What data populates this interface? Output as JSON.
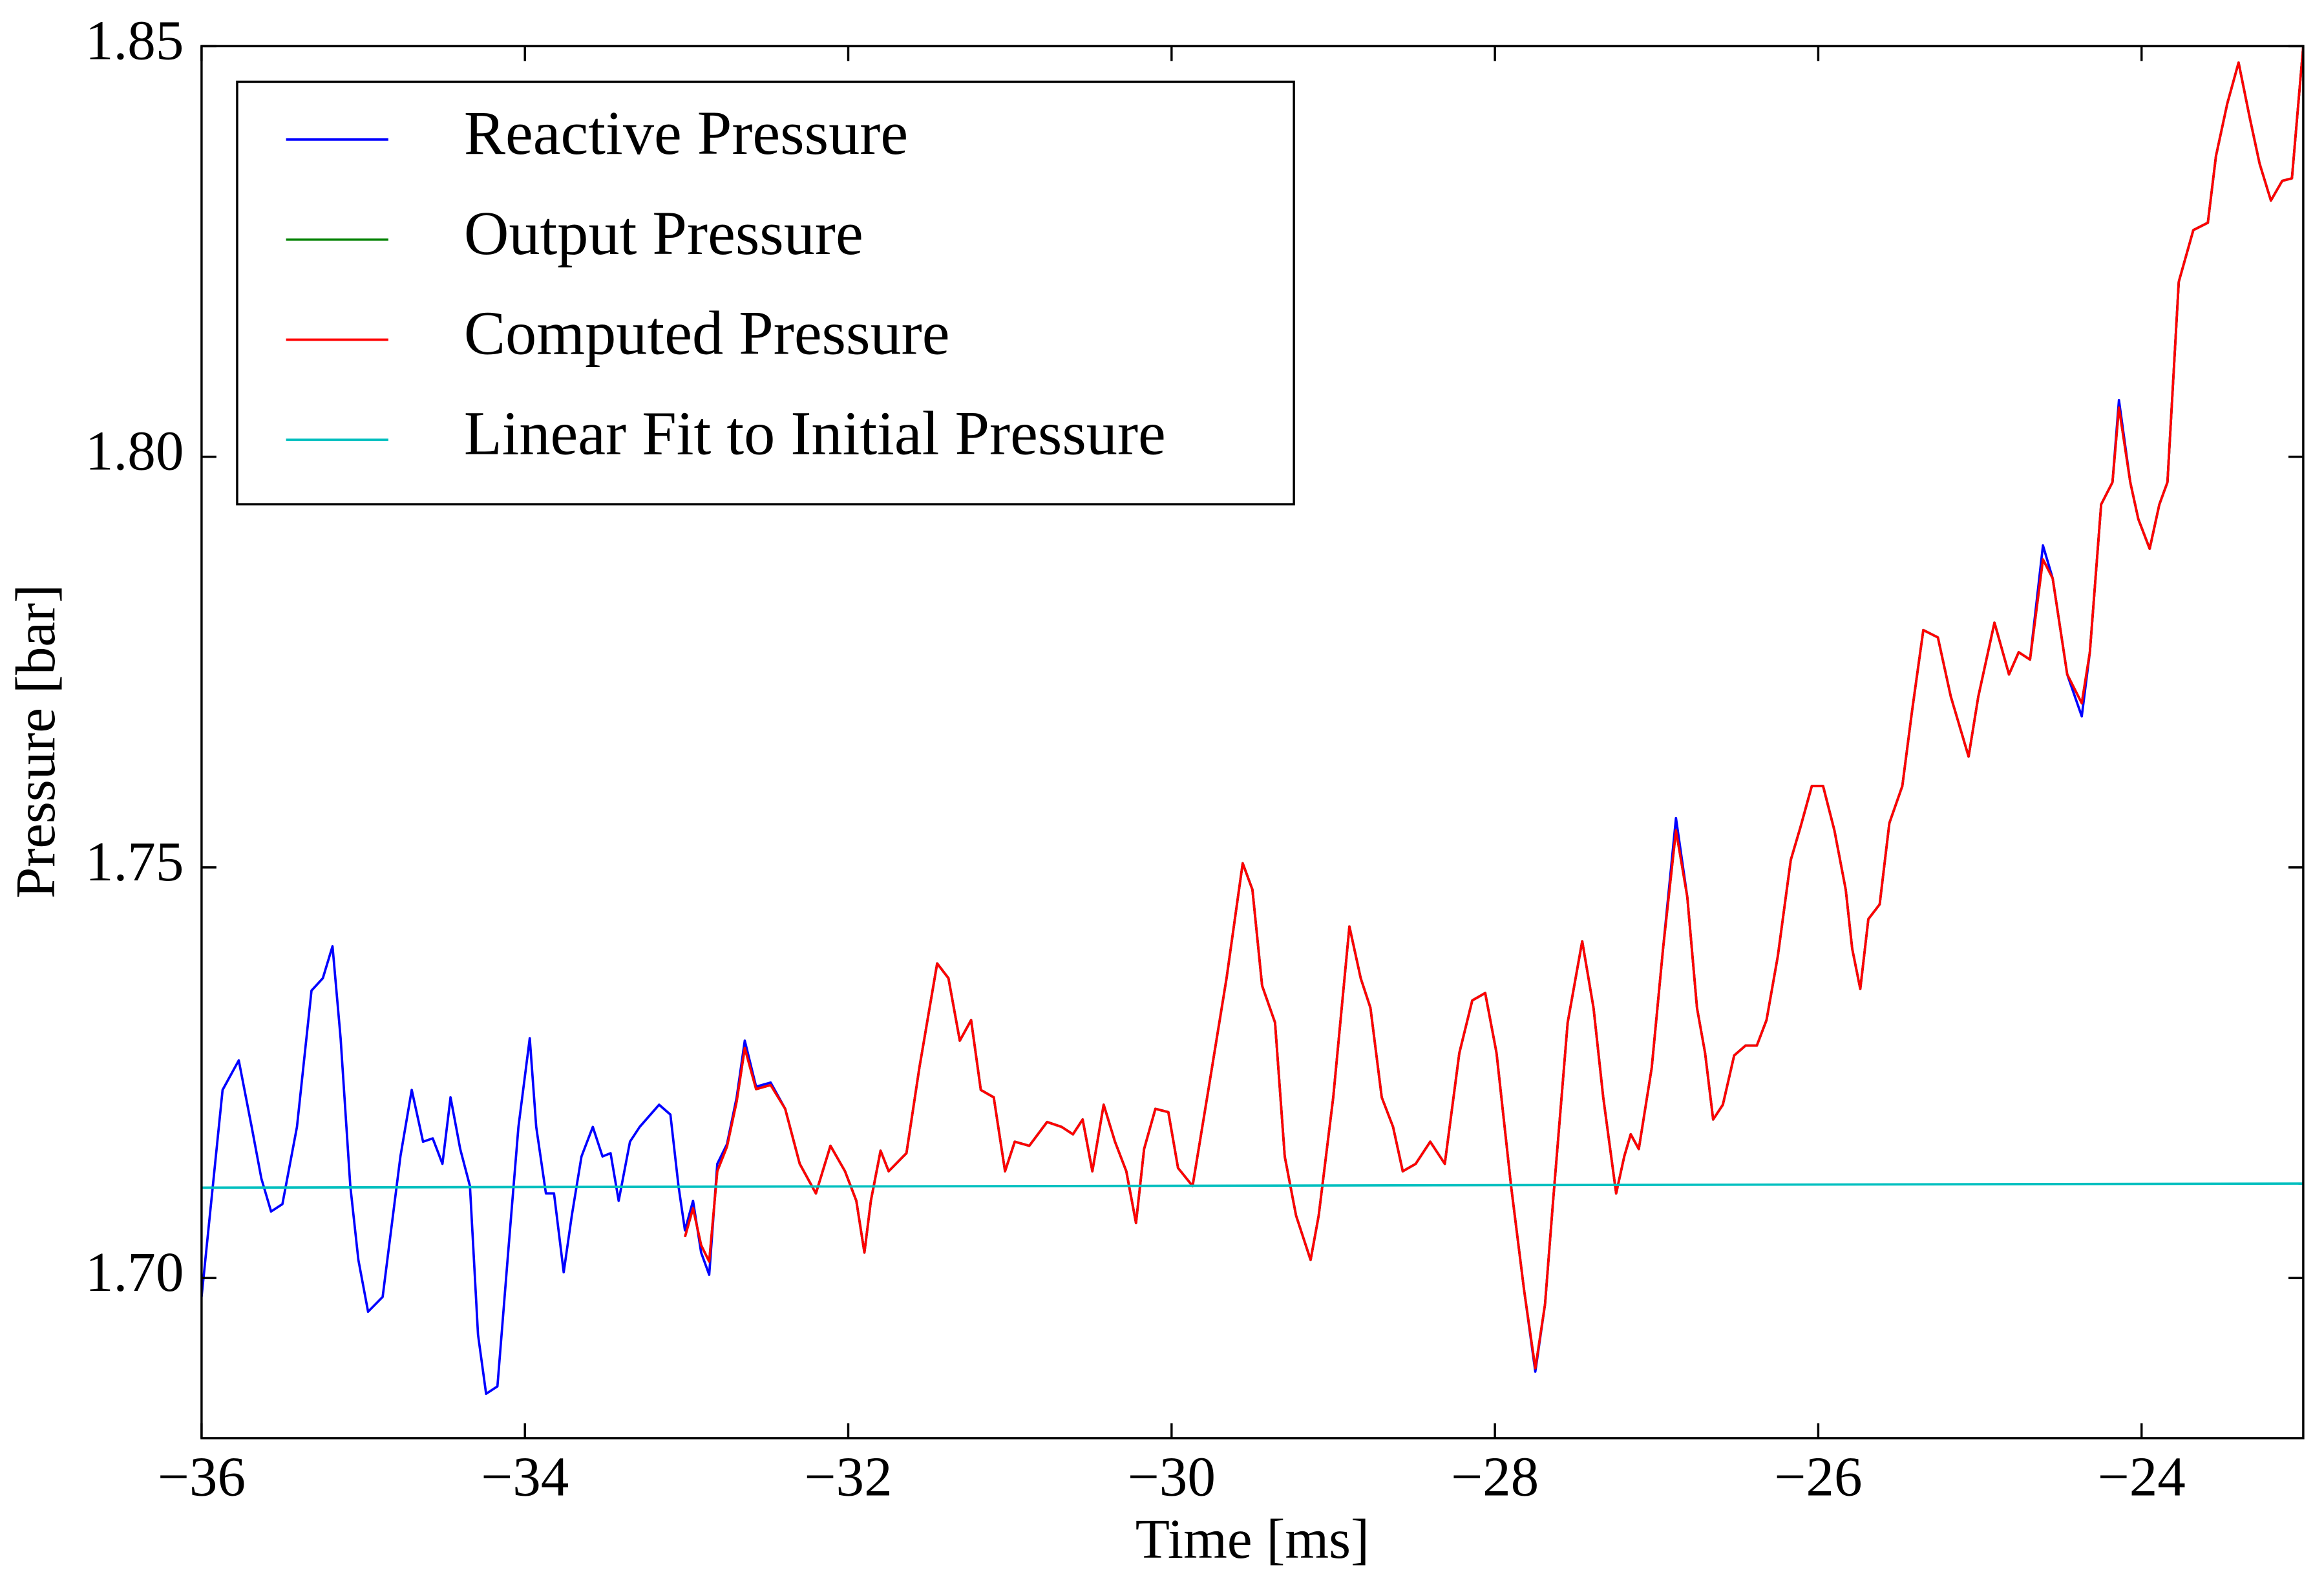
{
  "chart_data": {
    "type": "line",
    "xlabel": "Time [ms]",
    "ylabel": "Pressure [bar]",
    "xlim": [
      -36,
      -23
    ],
    "ylim": [
      1.6805,
      1.85
    ],
    "xticks": [
      {
        "value": -36,
        "label": "−36"
      },
      {
        "value": -34,
        "label": "−34"
      },
      {
        "value": -32,
        "label": "−32"
      },
      {
        "value": -30,
        "label": "−30"
      },
      {
        "value": -28,
        "label": "−28"
      },
      {
        "value": -26,
        "label": "−26"
      },
      {
        "value": -24,
        "label": "−24"
      }
    ],
    "yticks": [
      {
        "value": 1.7,
        "label": "1.70"
      },
      {
        "value": 1.75,
        "label": "1.75"
      },
      {
        "value": 1.8,
        "label": "1.80"
      },
      {
        "value": 1.85,
        "label": "1.85"
      }
    ],
    "grid": false,
    "legend": "upper left",
    "series": [
      {
        "name": "Reactive Pressure",
        "color": "#0000ff",
        "x": [
          -36.0,
          -35.87,
          -35.77,
          -35.69,
          -35.63,
          -35.57,
          -35.5,
          -35.41,
          -35.32,
          -35.25,
          -35.19,
          -35.14,
          -35.08,
          -35.03,
          -34.97,
          -34.88,
          -34.77,
          -34.7,
          -34.63,
          -34.57,
          -34.51,
          -34.46,
          -34.4,
          -34.34,
          -34.29,
          -34.24,
          -34.17,
          -34.1,
          -34.04,
          -33.97,
          -33.93,
          -33.87,
          -33.82,
          -33.76,
          -33.71,
          -33.65,
          -33.58,
          -33.52,
          -33.47,
          -33.42,
          -33.35,
          -33.29,
          -33.17,
          -33.1,
          -33.05,
          -33.01,
          -32.96,
          -32.91,
          -32.86,
          -32.81,
          -32.75,
          -32.69,
          -32.64,
          -32.57,
          -32.48,
          -32.39,
          -32.3,
          -32.2,
          -32.11,
          -32.02,
          -31.95,
          -31.9,
          -31.86,
          -31.8,
          -31.75,
          -31.64,
          -31.56,
          -31.45,
          -31.38,
          -31.31,
          -31.24,
          -31.18,
          -31.1,
          -31.03,
          -30.97,
          -30.88,
          -30.77,
          -30.68,
          -30.61,
          -30.55,
          -30.49,
          -30.42,
          -30.35,
          -30.28,
          -30.22,
          -30.17,
          -30.1,
          -30.02,
          -29.96,
          -29.87,
          -29.78,
          -29.66,
          -29.56,
          -29.5,
          -29.44,
          -29.36,
          -29.3,
          -29.23,
          -29.14,
          -29.09,
          -29.0,
          -28.9,
          -28.83,
          -28.77,
          -28.7,
          -28.63,
          -28.57,
          -28.49,
          -28.4,
          -28.31,
          -28.22,
          -28.14,
          -28.06,
          -27.99,
          -27.9,
          -27.82,
          -27.75,
          -27.69,
          -27.64,
          -27.55,
          -27.46,
          -27.39,
          -27.33,
          -27.25,
          -27.2,
          -27.16,
          -27.11,
          -27.03,
          -26.96,
          -26.88,
          -26.81,
          -26.75,
          -26.7,
          -26.65,
          -26.59,
          -26.52,
          -26.45,
          -26.38,
          -26.32,
          -26.25,
          -26.17,
          -26.11,
          -26.04,
          -25.97,
          -25.9,
          -25.83,
          -25.79,
          -25.74,
          -25.69,
          -25.62,
          -25.56,
          -25.48,
          -25.42,
          -25.35,
          -25.26,
          -25.18,
          -25.07,
          -25.01,
          -24.91,
          -24.82,
          -24.76,
          -24.69,
          -24.61,
          -24.55,
          -24.46,
          -24.37,
          -24.32,
          -24.25,
          -24.18,
          -24.14,
          -24.07,
          -24.02,
          -23.95,
          -23.89,
          -23.84,
          -23.77,
          -23.68,
          -23.59,
          -23.54,
          -23.47,
          -23.4,
          -23.33,
          -23.27,
          -23.2,
          -23.13,
          -23.07,
          -23.0
        ],
        "values": [
          1.6977,
          1.7229,
          1.7265,
          1.7184,
          1.7121,
          1.7081,
          1.709,
          1.7184,
          1.735,
          1.7365,
          1.7404,
          1.7292,
          1.7112,
          1.7022,
          1.6959,
          1.6977,
          1.7148,
          1.7229,
          1.7166,
          1.717,
          1.7139,
          1.722,
          1.7157,
          1.7112,
          1.6931,
          1.6859,
          1.6868,
          1.704,
          1.7184,
          1.7292,
          1.7184,
          1.7103,
          1.7103,
          1.7007,
          1.7076,
          1.7148,
          1.7184,
          1.7148,
          1.7152,
          1.7094,
          1.7166,
          1.7184,
          1.7211,
          1.7199,
          1.7112,
          1.7058,
          1.7094,
          1.7031,
          1.7004,
          1.7139,
          1.7163,
          1.722,
          1.7289,
          1.7233,
          1.7238,
          1.7206,
          1.7139,
          1.7103,
          1.7161,
          1.713,
          1.7094,
          1.7031,
          1.7094,
          1.7155,
          1.713,
          1.7152,
          1.7256,
          1.7383,
          1.7365,
          1.7289,
          1.7314,
          1.7229,
          1.722,
          1.713,
          1.7166,
          1.7161,
          1.719,
          1.7184,
          1.7175,
          1.7193,
          1.713,
          1.7211,
          1.7166,
          1.713,
          1.7067,
          1.7157,
          1.7206,
          1.7202,
          1.7134,
          1.7112,
          1.722,
          1.7365,
          1.7505,
          1.7473,
          1.7356,
          1.7311,
          1.7148,
          1.7076,
          1.7022,
          1.7076,
          1.722,
          1.7428,
          1.7365,
          1.7329,
          1.722,
          1.7184,
          1.713,
          1.7139,
          1.7166,
          1.7139,
          1.7274,
          1.7338,
          1.7347,
          1.7274,
          1.7112,
          1.6986,
          1.6886,
          1.6968,
          1.7094,
          1.7311,
          1.741,
          1.7329,
          1.722,
          1.7103,
          1.7148,
          1.7175,
          1.7157,
          1.7256,
          1.7401,
          1.756,
          1.7464,
          1.7329,
          1.7274,
          1.7193,
          1.7211,
          1.7271,
          1.7283,
          1.7283,
          1.7314,
          1.7392,
          1.7509,
          1.7549,
          1.7599,
          1.7599,
          1.7545,
          1.7473,
          1.7401,
          1.7352,
          1.7437,
          1.7455,
          1.7554,
          1.7599,
          1.769,
          1.7789,
          1.778,
          1.7708,
          1.7635,
          1.7708,
          1.7798,
          1.7735,
          1.7762,
          1.7753,
          1.7892,
          1.7852,
          1.7735,
          1.7684,
          1.7762,
          1.7942,
          1.7969,
          1.8069,
          1.7969,
          1.7924,
          1.7888,
          1.7942,
          1.7969,
          1.8213,
          1.8276,
          1.8285,
          1.8366,
          1.843,
          1.848,
          1.8412,
          1.8357,
          1.8312,
          1.8336,
          1.8339,
          1.85
        ]
      },
      {
        "name": "Output Pressure",
        "color": "#008000",
        "x": [
          -33.01,
          -32.96,
          -32.91,
          -32.86,
          -32.81,
          -32.75,
          -32.69,
          -32.64,
          -32.57,
          -32.48,
          -32.39,
          -32.3,
          -32.2,
          -32.11,
          -32.02,
          -31.95,
          -31.9,
          -31.86,
          -31.8,
          -31.75,
          -31.64,
          -31.56,
          -31.45,
          -31.38,
          -31.31,
          -31.24,
          -31.18,
          -31.1,
          -31.03,
          -30.97,
          -30.88,
          -30.77,
          -30.68,
          -30.61,
          -30.55,
          -30.49,
          -30.42,
          -30.35,
          -30.28,
          -30.22,
          -30.17,
          -30.1,
          -30.02,
          -29.96,
          -29.87,
          -29.78,
          -29.66,
          -29.56,
          -29.5,
          -29.44,
          -29.36,
          -29.3,
          -29.23,
          -29.14,
          -29.09,
          -29.0,
          -28.9,
          -28.83,
          -28.77,
          -28.7,
          -28.63,
          -28.57,
          -28.49,
          -28.4,
          -28.31,
          -28.22,
          -28.14,
          -28.06,
          -27.99,
          -27.9,
          -27.82,
          -27.75,
          -27.69,
          -27.64,
          -27.55,
          -27.46,
          -27.39,
          -27.33,
          -27.25,
          -27.2,
          -27.16,
          -27.11,
          -27.03,
          -26.96,
          -26.88,
          -26.81,
          -26.75,
          -26.7,
          -26.65,
          -26.59,
          -26.52,
          -26.45,
          -26.38,
          -26.32,
          -26.25,
          -26.17,
          -26.11,
          -26.04,
          -25.97,
          -25.9,
          -25.83,
          -25.79,
          -25.74,
          -25.69,
          -25.62,
          -25.56,
          -25.48,
          -25.42,
          -25.35,
          -25.26,
          -25.18,
          -25.07,
          -25.01,
          -24.91,
          -24.82,
          -24.76,
          -24.69,
          -24.61,
          -24.55,
          -24.46,
          -24.37,
          -24.32,
          -24.25,
          -24.18,
          -24.14,
          -24.07,
          -24.02,
          -23.95,
          -23.89,
          -23.84,
          -23.77,
          -23.68,
          -23.59,
          -23.54,
          -23.47,
          -23.4,
          -23.33,
          -23.27,
          -23.2,
          -23.13,
          -23.07,
          -23.0
        ],
        "values": [
          1.705,
          1.7085,
          1.704,
          1.702,
          1.713,
          1.716,
          1.7215,
          1.728,
          1.723,
          1.7235,
          1.7206,
          1.7139,
          1.7103,
          1.7161,
          1.713,
          1.7094,
          1.7031,
          1.7094,
          1.7155,
          1.713,
          1.7152,
          1.7256,
          1.7383,
          1.7365,
          1.7289,
          1.7314,
          1.7229,
          1.722,
          1.713,
          1.7166,
          1.7161,
          1.719,
          1.7184,
          1.7175,
          1.7193,
          1.713,
          1.7211,
          1.7166,
          1.713,
          1.7067,
          1.7157,
          1.7206,
          1.7202,
          1.7134,
          1.7112,
          1.722,
          1.7365,
          1.7505,
          1.7473,
          1.7356,
          1.7311,
          1.7148,
          1.7076,
          1.7022,
          1.7076,
          1.722,
          1.7428,
          1.7365,
          1.7329,
          1.722,
          1.7184,
          1.713,
          1.7139,
          1.7166,
          1.7139,
          1.7274,
          1.7338,
          1.7347,
          1.7274,
          1.7112,
          1.6986,
          1.689,
          1.6968,
          1.7094,
          1.7311,
          1.741,
          1.7329,
          1.722,
          1.7103,
          1.7148,
          1.7175,
          1.7157,
          1.7256,
          1.7401,
          1.7545,
          1.7464,
          1.7329,
          1.7274,
          1.7193,
          1.7211,
          1.7271,
          1.7283,
          1.7283,
          1.7314,
          1.7392,
          1.7509,
          1.7549,
          1.7599,
          1.7599,
          1.7545,
          1.7473,
          1.7401,
          1.7352,
          1.7437,
          1.7455,
          1.7554,
          1.7599,
          1.769,
          1.7789,
          1.778,
          1.7708,
          1.7635,
          1.7708,
          1.7798,
          1.7735,
          1.7762,
          1.7753,
          1.7875,
          1.7852,
          1.7735,
          1.77,
          1.7762,
          1.7942,
          1.7969,
          1.806,
          1.7969,
          1.7924,
          1.7888,
          1.7942,
          1.7969,
          1.8213,
          1.8276,
          1.8285,
          1.8366,
          1.843,
          1.848,
          1.8412,
          1.8357,
          1.8312,
          1.8336,
          1.8339,
          1.85
        ]
      },
      {
        "name": "Computed Pressure",
        "color": "#ff0000",
        "x": [
          -33.01,
          -32.96,
          -32.91,
          -32.86,
          -32.81,
          -32.75,
          -32.69,
          -32.64,
          -32.57,
          -32.48,
          -32.39,
          -32.3,
          -32.2,
          -32.11,
          -32.02,
          -31.95,
          -31.9,
          -31.86,
          -31.8,
          -31.75,
          -31.64,
          -31.56,
          -31.45,
          -31.38,
          -31.31,
          -31.24,
          -31.18,
          -31.1,
          -31.03,
          -30.97,
          -30.88,
          -30.77,
          -30.68,
          -30.61,
          -30.55,
          -30.49,
          -30.42,
          -30.35,
          -30.28,
          -30.22,
          -30.17,
          -30.1,
          -30.02,
          -29.96,
          -29.87,
          -29.78,
          -29.66,
          -29.56,
          -29.5,
          -29.44,
          -29.36,
          -29.3,
          -29.23,
          -29.14,
          -29.09,
          -29.0,
          -28.9,
          -28.83,
          -28.77,
          -28.7,
          -28.63,
          -28.57,
          -28.49,
          -28.4,
          -28.31,
          -28.22,
          -28.14,
          -28.06,
          -27.99,
          -27.9,
          -27.82,
          -27.75,
          -27.69,
          -27.64,
          -27.55,
          -27.46,
          -27.39,
          -27.33,
          -27.25,
          -27.2,
          -27.16,
          -27.11,
          -27.03,
          -26.96,
          -26.88,
          -26.81,
          -26.75,
          -26.7,
          -26.65,
          -26.59,
          -26.52,
          -26.45,
          -26.38,
          -26.32,
          -26.25,
          -26.17,
          -26.11,
          -26.04,
          -25.97,
          -25.9,
          -25.83,
          -25.79,
          -25.74,
          -25.69,
          -25.62,
          -25.56,
          -25.48,
          -25.42,
          -25.35,
          -25.26,
          -25.18,
          -25.07,
          -25.01,
          -24.91,
          -24.82,
          -24.76,
          -24.69,
          -24.61,
          -24.55,
          -24.46,
          -24.37,
          -24.32,
          -24.25,
          -24.18,
          -24.14,
          -24.07,
          -24.02,
          -23.95,
          -23.89,
          -23.84,
          -23.77,
          -23.68,
          -23.59,
          -23.54,
          -23.47,
          -23.4,
          -23.33,
          -23.27,
          -23.2,
          -23.13,
          -23.07,
          -23.0
        ],
        "values": [
          1.705,
          1.7085,
          1.704,
          1.702,
          1.713,
          1.716,
          1.7215,
          1.728,
          1.723,
          1.7235,
          1.7206,
          1.7139,
          1.7103,
          1.7161,
          1.713,
          1.7094,
          1.7031,
          1.7094,
          1.7155,
          1.713,
          1.7152,
          1.7256,
          1.7383,
          1.7365,
          1.7289,
          1.7314,
          1.7229,
          1.722,
          1.713,
          1.7166,
          1.7161,
          1.719,
          1.7184,
          1.7175,
          1.7193,
          1.713,
          1.7211,
          1.7166,
          1.713,
          1.7067,
          1.7157,
          1.7206,
          1.7202,
          1.7134,
          1.7112,
          1.722,
          1.7365,
          1.7505,
          1.7473,
          1.7356,
          1.7311,
          1.7148,
          1.7076,
          1.7022,
          1.7076,
          1.722,
          1.7428,
          1.7365,
          1.7329,
          1.722,
          1.7184,
          1.713,
          1.7139,
          1.7166,
          1.7139,
          1.7274,
          1.7338,
          1.7347,
          1.7274,
          1.7112,
          1.6986,
          1.689,
          1.6968,
          1.7094,
          1.7311,
          1.741,
          1.7329,
          1.722,
          1.7103,
          1.7148,
          1.7175,
          1.7157,
          1.7256,
          1.7401,
          1.7545,
          1.7464,
          1.7329,
          1.7274,
          1.7193,
          1.7211,
          1.7271,
          1.7283,
          1.7283,
          1.7314,
          1.7392,
          1.7509,
          1.7549,
          1.7599,
          1.7599,
          1.7545,
          1.7473,
          1.7401,
          1.7352,
          1.7437,
          1.7455,
          1.7554,
          1.7599,
          1.769,
          1.7789,
          1.778,
          1.7708,
          1.7635,
          1.7708,
          1.7798,
          1.7735,
          1.7762,
          1.7753,
          1.7875,
          1.7852,
          1.7735,
          1.77,
          1.7762,
          1.7942,
          1.7969,
          1.806,
          1.7969,
          1.7924,
          1.7888,
          1.7942,
          1.7969,
          1.8213,
          1.8276,
          1.8285,
          1.8366,
          1.843,
          1.848,
          1.8412,
          1.8357,
          1.8312,
          1.8336,
          1.8339,
          1.85
        ]
      },
      {
        "name": "Linear Fit to Initial Pressure",
        "color": "#00bfbf",
        "x": [
          -36,
          -23
        ],
        "values": [
          1.711,
          1.7115
        ]
      }
    ]
  }
}
